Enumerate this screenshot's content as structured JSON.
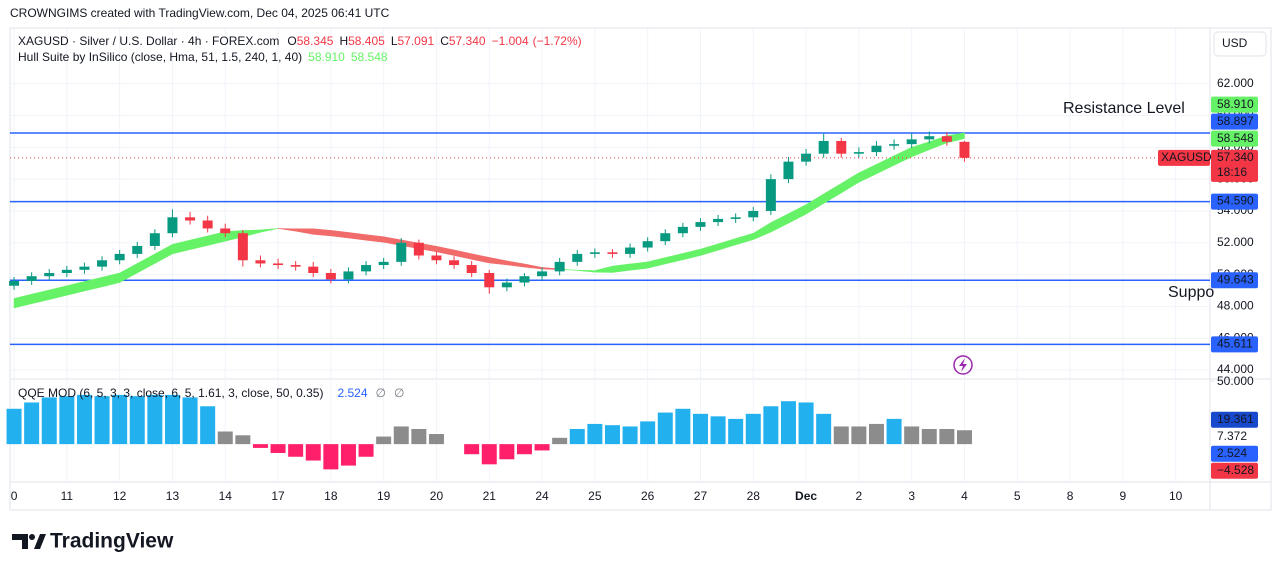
{
  "header": {
    "attribution": "CROWNGIMS created with TradingView.com, Dec 04, 2025 06:41 UTC",
    "currency": "USD",
    "brand": "TradingView"
  },
  "chart_data": [
    {
      "type": "candlestick",
      "title": "XAGUSD · Silver / U.S. Dollar · 4h · FOREX.com",
      "symbol": "XAGUSD",
      "ohlc": [
        {
          "name": "O",
          "value": 58.345
        },
        {
          "name": "H",
          "value": 58.405
        },
        {
          "name": "L",
          "value": 57.091
        },
        {
          "name": "C",
          "value": 57.34,
          "label": "57.340"
        }
      ],
      "change": {
        "value": -1.004,
        "label": "−1.004"
      },
      "change_percent": {
        "value": -1.72,
        "label": "(−1.72%)"
      },
      "countdown": "18:16",
      "up_color": "#089981",
      "down_color": "#f23645",
      "x": [
        0,
        1,
        2,
        3,
        4,
        5,
        6,
        7,
        8,
        9,
        10,
        11,
        12,
        13,
        14,
        15,
        16,
        17,
        18,
        19,
        20,
        21,
        22,
        23,
        24,
        25,
        26,
        27,
        28,
        29,
        30,
        31,
        32,
        33,
        34,
        35,
        36,
        37,
        38,
        39,
        40,
        41,
        42,
        43,
        44,
        45,
        46,
        47,
        48,
        49,
        50,
        51,
        52,
        53,
        54
      ],
      "open": [
        49.3,
        49.6,
        49.9,
        50.1,
        50.3,
        50.5,
        50.9,
        51.3,
        51.8,
        52.6,
        53.6,
        53.4,
        52.9,
        52.6,
        50.9,
        50.7,
        50.6,
        50.5,
        50.1,
        49.7,
        50.2,
        50.6,
        50.8,
        52.0,
        51.2,
        50.9,
        50.6,
        50.1,
        49.2,
        49.5,
        49.9,
        50.2,
        50.8,
        51.3,
        51.4,
        51.3,
        51.7,
        52.1,
        52.6,
        53.0,
        53.3,
        53.5,
        53.6,
        54.0,
        56.0,
        57.1,
        57.6,
        58.4,
        57.6,
        57.7,
        58.1,
        58.2,
        58.5,
        58.7,
        58.345
      ],
      "high": [
        49.85,
        50.15,
        50.35,
        50.55,
        50.75,
        51.15,
        51.55,
        52.05,
        52.85,
        54.1,
        53.95,
        53.7,
        53.2,
        52.8,
        51.2,
        51.0,
        50.85,
        50.8,
        50.35,
        50.45,
        50.85,
        51.05,
        52.3,
        52.2,
        51.45,
        51.15,
        50.85,
        50.3,
        49.75,
        50.1,
        50.45,
        51.05,
        51.55,
        51.65,
        51.6,
        51.95,
        52.35,
        52.85,
        53.25,
        53.55,
        53.75,
        53.85,
        54.25,
        56.3,
        57.4,
        57.9,
        58.85,
        58.6,
        58.0,
        58.4,
        58.5,
        58.9,
        59.0,
        58.95,
        58.405
      ],
      "low": [
        49.05,
        49.35,
        49.65,
        49.85,
        50.05,
        50.25,
        50.65,
        51.05,
        51.55,
        52.35,
        53.15,
        52.65,
        52.35,
        50.5,
        50.45,
        50.35,
        50.25,
        49.85,
        49.45,
        49.45,
        49.95,
        50.35,
        50.55,
        50.95,
        50.65,
        50.35,
        49.85,
        48.8,
        48.95,
        49.25,
        49.65,
        49.95,
        50.55,
        51.05,
        51.05,
        51.05,
        51.45,
        51.85,
        52.35,
        52.75,
        53.05,
        53.25,
        53.35,
        53.75,
        55.75,
        56.85,
        57.35,
        57.35,
        57.35,
        57.45,
        57.85,
        57.95,
        58.25,
        58.1,
        57.091
      ],
      "close": [
        49.6,
        49.9,
        50.1,
        50.3,
        50.5,
        50.9,
        51.3,
        51.8,
        52.6,
        53.6,
        53.4,
        52.9,
        52.6,
        50.9,
        50.7,
        50.6,
        50.5,
        50.1,
        49.7,
        50.2,
        50.6,
        50.8,
        52.0,
        51.2,
        50.9,
        50.6,
        50.1,
        49.2,
        49.5,
        49.9,
        50.2,
        50.8,
        51.3,
        51.4,
        51.3,
        51.7,
        52.1,
        52.6,
        53.0,
        53.3,
        53.5,
        53.6,
        54.0,
        56.0,
        57.1,
        57.6,
        58.4,
        57.6,
        57.7,
        58.1,
        58.2,
        58.5,
        58.7,
        58.35,
        57.34
      ],
      "xlim": [
        -0.23,
        67.95
      ],
      "xticks": [
        0,
        {
          "value": 3,
          "label": "11"
        },
        {
          "value": 6,
          "label": "12"
        },
        {
          "value": 9,
          "label": "13"
        },
        {
          "value": 12,
          "label": "14"
        },
        {
          "value": 15,
          "label": "17"
        },
        {
          "value": 18,
          "label": "18"
        },
        {
          "value": 21,
          "label": "19"
        },
        {
          "value": 24,
          "label": "20"
        },
        {
          "value": 27,
          "label": "21"
        },
        {
          "value": 30,
          "label": "24"
        },
        {
          "value": 33,
          "label": "25"
        },
        {
          "value": 36,
          "label": "26"
        },
        {
          "value": 39,
          "label": "27"
        },
        {
          "value": 42,
          "label": "28"
        },
        {
          "value": 45,
          "label": "Dec"
        },
        {
          "value": 48,
          "label": "2"
        },
        {
          "value": 51,
          "label": "3"
        },
        {
          "value": 54,
          "label": "4"
        },
        {
          "value": 57,
          "label": "5"
        },
        {
          "value": 60,
          "label": "8"
        },
        {
          "value": 63,
          "label": "9"
        },
        {
          "value": 66,
          "label": "10"
        }
      ],
      "ylim": [
        43.5,
        65.5
      ],
      "yticks": [
        {
          "value": 44,
          "label": "44.000"
        },
        {
          "value": 46,
          "label": "46.000"
        },
        {
          "value": 48,
          "label": "48.000"
        },
        {
          "value": 50,
          "label": "50.000"
        },
        {
          "value": 52,
          "label": "52.000"
        },
        {
          "value": 54,
          "label": "54.000"
        },
        {
          "value": 56,
          "label": "56.000"
        },
        {
          "value": 58,
          "label": "58.000"
        },
        {
          "value": 60,
          "label": "60.000"
        },
        {
          "value": 62,
          "label": "62.000"
        }
      ],
      "grid": true,
      "indicator": {
        "title": "Hull Suite by InSilico (close, Hma, 51, 1.5, 240, 1, 40)",
        "legend_values": [
          {
            "value": 58.91,
            "label": "58.910"
          },
          58.548
        ],
        "up_color": "#66f266",
        "down_color": "#f26b6b",
        "series": [
          {
            "values": [
              48.5,
              48.77,
              49.03,
              49.3,
              49.57,
              49.83,
              50.1,
              50.7,
              51.3,
              51.9,
              52.17,
              52.43,
              52.7,
              52.77,
              52.81,
              52.9,
              52.73,
              52.53,
              52.43,
              52.3,
              52.16,
              52.03,
              51.83,
              51.63,
              51.43,
              51.2,
              50.96,
              50.73,
              50.61,
              50.47,
              50.35,
              50.31,
              50.28,
              50.25,
              50.53,
              50.67,
              50.8,
              51.07,
              51.33,
              51.6,
              51.93,
              52.27,
              52.6,
              53.27,
              53.83,
              54.4,
              55.07,
              55.73,
              56.4,
              56.93,
              57.47,
              58.0,
              58.35,
              58.73,
              58.91
            ]
          },
          {
            "values": [
              47.9,
              48.17,
              48.43,
              48.7,
              48.97,
              49.23,
              49.5,
              50.1,
              50.7,
              51.3,
              51.57,
              51.83,
              52.1,
              52.37,
              52.66,
              52.9,
              52.88,
              52.88,
              52.78,
              52.65,
              52.51,
              52.38,
              52.18,
              51.98,
              51.78,
              51.55,
              51.31,
              51.08,
              50.86,
              50.67,
              50.45,
              50.36,
              50.26,
              50.15,
              50.13,
              50.27,
              50.4,
              50.67,
              50.93,
              51.2,
              51.53,
              51.87,
              52.2,
              52.67,
              53.23,
              53.8,
              54.47,
              55.13,
              55.8,
              56.33,
              56.87,
              57.4,
              57.85,
              58.28,
              58.548
            ]
          }
        ]
      },
      "levels": [
        58.897,
        {
          "value": 54.59,
          "label": "54.590"
        },
        49.643,
        45.611
      ],
      "level_color": "#2962ff",
      "annotations": [
        "Resistance Level",
        "Suppo"
      ],
      "annotation_color": "#f23645"
    },
    {
      "type": "bar",
      "title": "QQE MOD (6, 5, 3, 3, close, 6, 5, 1.61, 3, close, 50, 0.35)",
      "legend_values": [
        2.524
      ],
      "legend_color": "#2962ff",
      "legend_symbols": [
        "∅",
        "∅"
      ],
      "x": [
        0,
        1,
        2,
        3,
        4,
        5,
        6,
        7,
        8,
        9,
        10,
        11,
        12,
        13,
        14,
        15,
        16,
        17,
        18,
        19,
        20,
        21,
        22,
        23,
        24,
        25,
        26,
        27,
        28,
        29,
        30,
        31,
        32,
        33,
        34,
        35,
        36,
        37,
        38,
        39,
        40,
        41,
        42,
        43,
        44,
        45,
        46,
        47,
        48,
        49,
        50,
        51,
        52,
        53,
        54
      ],
      "values": [
        28,
        33,
        37,
        38,
        39,
        38,
        39,
        38,
        39,
        39,
        37,
        30,
        10,
        7,
        -3,
        -7,
        -10,
        -13,
        -20,
        -17,
        -10,
        6,
        14,
        12,
        8,
        0,
        -8,
        -16,
        -12,
        -8,
        -5,
        5,
        12,
        16,
        15,
        14,
        18,
        25,
        28,
        24,
        22,
        20,
        24,
        30,
        34,
        33,
        24,
        14,
        14,
        16,
        20,
        14,
        12,
        12,
        11
      ],
      "colors": [
        "#22b0ef",
        "#22b0ef",
        "#22b0ef",
        "#22b0ef",
        "#22b0ef",
        "#22b0ef",
        "#22b0ef",
        "#22b0ef",
        "#22b0ef",
        "#22b0ef",
        "#22b0ef",
        "#22b0ef",
        "#8c8c8c",
        "#8c8c8c",
        "#ff1f6b",
        "#ff1f6b",
        "#ff1f6b",
        "#ff1f6b",
        "#ff1f6b",
        "#ff1f6b",
        "#ff1f6b",
        "#8c8c8c",
        "#8c8c8c",
        "#8c8c8c",
        "#8c8c8c",
        "#8c8c8c",
        "#ff1f6b",
        "#ff1f6b",
        "#ff1f6b",
        "#ff1f6b",
        "#ff1f6b",
        "#8c8c8c",
        "#22b0ef",
        "#22b0ef",
        "#22b0ef",
        "#22b0ef",
        "#22b0ef",
        "#22b0ef",
        "#22b0ef",
        "#22b0ef",
        "#22b0ef",
        "#22b0ef",
        "#22b0ef",
        "#22b0ef",
        "#22b0ef",
        "#22b0ef",
        "#22b0ef",
        "#8c8c8c",
        "#8c8c8c",
        "#8c8c8c",
        "#22b0ef",
        "#8c8c8c",
        "#8c8c8c",
        "#8c8c8c",
        "#8c8c8c"
      ],
      "xlim": [
        -0.23,
        67.95
      ],
      "ylim": [
        -30,
        50.8
      ],
      "yticks": [
        {
          "value": 50,
          "label": "50.000"
        }
      ],
      "markers": [
        {
          "value": 19.361,
          "color": "#1848cc"
        },
        {
          "value": 7.372,
          "color": "#ffffff"
        },
        {
          "value": 2.524,
          "color": "#2962ff"
        },
        {
          "value": -4.528,
          "label": "−4.528",
          "color": "#f23645"
        }
      ]
    }
  ]
}
